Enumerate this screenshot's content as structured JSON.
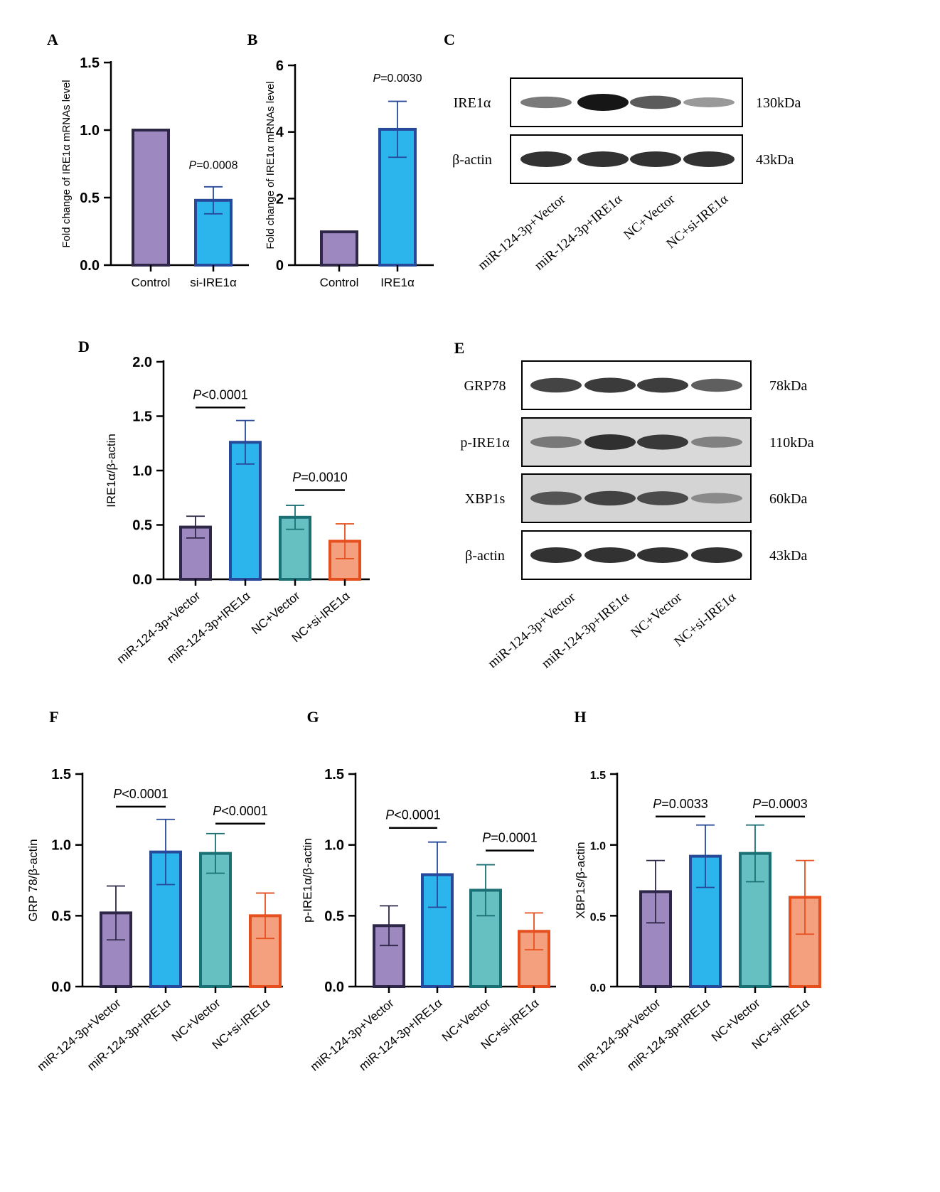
{
  "colors": {
    "purple_fill": "#9D89BF",
    "purple_edge": "#2F2748",
    "blue_fill": "#2CB4EC",
    "blue_edge": "#27499A",
    "teal_fill": "#66BFC0",
    "teal_edge": "#1B7075",
    "orange_fill": "#F4A07F",
    "orange_edge": "#E6501E"
  },
  "chart_data": [
    {
      "id": "A",
      "panel_label": "A",
      "type": "bar",
      "ylabel": "Fold change of IRE1α mRNAs level",
      "ylim": [
        0,
        1.5
      ],
      "yticks": [
        "0.0",
        "0.5",
        "1.0",
        "1.5"
      ],
      "ytick_values": [
        0,
        0.5,
        1.0,
        1.5
      ],
      "categories": [
        "Control",
        "si-IRE1α"
      ],
      "values": [
        1.0,
        0.48
      ],
      "errors": [
        0,
        0.1
      ],
      "palette": [
        "purple",
        "blue"
      ],
      "annotations": [
        {
          "prefix": "P",
          "text": "=0.0008",
          "bar": 1,
          "y": 0.65
        }
      ]
    },
    {
      "id": "B",
      "panel_label": "B",
      "type": "bar",
      "ylabel": "Fold change of IRE1α mRNAs level",
      "ylim": [
        0,
        6
      ],
      "yticks": [
        "0",
        "2",
        "4",
        "6"
      ],
      "ytick_values": [
        0,
        2,
        4,
        6
      ],
      "categories": [
        "Control",
        "IRE1α"
      ],
      "values": [
        1.0,
        4.08
      ],
      "errors": [
        0,
        0.84
      ],
      "palette": [
        "purple",
        "blue"
      ],
      "annotations": [
        {
          "prefix": "P",
          "text": "=0.0030",
          "bar": 1,
          "y": 5.25
        }
      ]
    },
    {
      "id": "D",
      "panel_label": "D",
      "type": "bar",
      "ylabel": "IRE1α/β-actin",
      "ylim": [
        0,
        2.0
      ],
      "yticks": [
        "0.0",
        "0.5",
        "1.0",
        "1.5",
        "2.0"
      ],
      "ytick_values": [
        0,
        0.5,
        1.0,
        1.5,
        2.0
      ],
      "categories": [
        "miR-124-3p+Vector",
        "miR-124-3p+IRE1α",
        "NC+Vector",
        "NC+si-IRE1α"
      ],
      "values": [
        0.48,
        1.26,
        0.57,
        0.35
      ],
      "errors": [
        0.1,
        0.2,
        0.11,
        0.16
      ],
      "palette": [
        "purple",
        "blue",
        "teal",
        "orange"
      ],
      "annotations": [
        {
          "prefix": "P",
          "text": "<0.0001",
          "from": 0,
          "to": 1,
          "y": 1.58
        },
        {
          "prefix": "P",
          "text": "=0.0010",
          "from": 2,
          "to": 3,
          "y": 0.82
        }
      ]
    },
    {
      "id": "F",
      "panel_label": "F",
      "type": "bar",
      "ylabel": "GRP 78/β-actin",
      "ylim": [
        0,
        1.5
      ],
      "yticks": [
        "0.0",
        "0.5",
        "1.0",
        "1.5"
      ],
      "ytick_values": [
        0,
        0.5,
        1.0,
        1.5
      ],
      "categories": [
        "miR-124-3p+Vector",
        "miR-124-3p+IRE1α",
        "NC+Vector",
        "NC+si-IRE1α"
      ],
      "values": [
        0.52,
        0.95,
        0.94,
        0.5
      ],
      "errors": [
        0.19,
        0.23,
        0.14,
        0.16
      ],
      "palette": [
        "purple",
        "blue",
        "teal",
        "orange"
      ],
      "annotations": [
        {
          "prefix": "P",
          "text": "<0.0001",
          "from": 0,
          "to": 1,
          "y": 1.27
        },
        {
          "prefix": "P",
          "text": "<0.0001",
          "from": 2,
          "to": 3,
          "y": 1.15
        }
      ]
    },
    {
      "id": "G",
      "panel_label": "G",
      "type": "bar",
      "ylabel": "p-IRE1α/β-actin",
      "ylim": [
        0,
        1.5
      ],
      "yticks": [
        "0.0",
        "0.5",
        "1.0",
        "1.5"
      ],
      "ytick_values": [
        0,
        0.5,
        1.0,
        1.5
      ],
      "categories": [
        "miR-124-3p+Vector",
        "miR-124-3p+IRE1α",
        "NC+Vector",
        "NC+si-IRE1α"
      ],
      "values": [
        0.43,
        0.79,
        0.68,
        0.39
      ],
      "errors": [
        0.14,
        0.23,
        0.18,
        0.13
      ],
      "palette": [
        "purple",
        "blue",
        "teal",
        "orange"
      ],
      "annotations": [
        {
          "prefix": "P",
          "text": "<0.0001",
          "from": 0,
          "to": 1,
          "y": 1.12
        },
        {
          "prefix": "P",
          "text": "=0.0001",
          "from": 2,
          "to": 3,
          "y": 0.96
        }
      ]
    },
    {
      "id": "H",
      "panel_label": "H",
      "type": "bar",
      "ylabel": "XBP1s/β-actin",
      "ylim": [
        0,
        1.5
      ],
      "yticks": [
        "0.0",
        "0.5",
        "1.0",
        "1.5"
      ],
      "ytick_values": [
        0,
        0.5,
        1.0,
        1.5
      ],
      "categories": [
        "miR-124-3p+Vector",
        "miR-124-3p+IRE1α",
        "NC+Vector",
        "NC+si-IRE1α"
      ],
      "values": [
        0.67,
        0.92,
        0.94,
        0.63
      ],
      "errors": [
        0.22,
        0.22,
        0.2,
        0.26
      ],
      "palette": [
        "purple",
        "blue",
        "teal",
        "orange"
      ],
      "annotations": [
        {
          "prefix": "P",
          "text": "=0.0033",
          "from": 0,
          "to": 1,
          "y": 1.2
        },
        {
          "prefix": "P",
          "text": "=0.0003",
          "from": 2,
          "to": 3,
          "y": 1.2
        }
      ]
    }
  ],
  "blots": {
    "C": {
      "panel_label": "C",
      "rows": [
        {
          "name": "IRE1α",
          "size": "130kDa",
          "intensities": [
            0.45,
            1.0,
            0.62,
            0.28
          ]
        },
        {
          "name": "β-actin",
          "size": "43kDa",
          "intensities": [
            0.85,
            0.85,
            0.85,
            0.85
          ]
        }
      ],
      "lanes": [
        "miR-124-3p+Vector",
        "miR-124-3p+IRE1α",
        "NC+Vector",
        "NC+si-IRE1α"
      ]
    },
    "E": {
      "panel_label": "E",
      "rows": [
        {
          "name": "GRP78",
          "size": "78kDa",
          "intensities": [
            0.75,
            0.8,
            0.78,
            0.6
          ]
        },
        {
          "name": "p-IRE1α",
          "size": "110kDa",
          "intensities": [
            0.45,
            0.85,
            0.8,
            0.4
          ]
        },
        {
          "name": "XBP1s",
          "size": "60kDa",
          "intensities": [
            0.65,
            0.75,
            0.7,
            0.35
          ]
        },
        {
          "name": "β-actin",
          "size": "43kDa",
          "intensities": [
            0.85,
            0.85,
            0.85,
            0.85
          ]
        }
      ],
      "lanes": [
        "miR-124-3p+Vector",
        "miR-124-3p+IRE1α",
        "NC+Vector",
        "NC+si-IRE1α"
      ]
    }
  }
}
